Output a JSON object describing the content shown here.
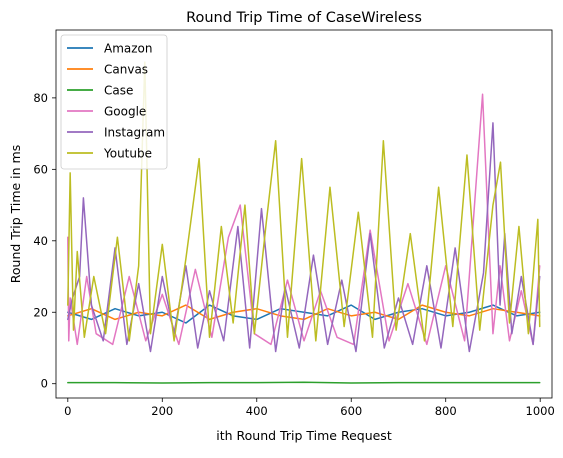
{
  "chart_data": {
    "type": "line",
    "title": "Round Trip Time of CaseWireless",
    "xlabel": "ith Round Trip Time Request",
    "ylabel": "Round Trip Time in ms",
    "xlim": [
      -25,
      1025
    ],
    "ylim": [
      -4,
      99
    ],
    "xticks": [
      0,
      200,
      400,
      600,
      800,
      1000
    ],
    "xtick_labels": [
      "0",
      "200",
      "400",
      "600",
      "800",
      "1000"
    ],
    "yticks": [
      0,
      20,
      40,
      60,
      80
    ],
    "ytick_labels": [
      "0",
      "20",
      "40",
      "60",
      "80"
    ],
    "grid": false,
    "legend_position": "top-left",
    "series": [
      {
        "name": "Amazon",
        "color": "#1f77b4",
        "x": [
          0,
          50,
          100,
          150,
          200,
          250,
          300,
          350,
          400,
          450,
          500,
          550,
          600,
          650,
          700,
          750,
          800,
          850,
          900,
          950,
          999
        ],
        "values": [
          20,
          18,
          21,
          19,
          20,
          17,
          22,
          19,
          18,
          21,
          20,
          19,
          22,
          18,
          20,
          21,
          19,
          20,
          22,
          19,
          20
        ]
      },
      {
        "name": "Canvas",
        "color": "#ff7f0e",
        "x": [
          0,
          50,
          100,
          150,
          200,
          250,
          300,
          350,
          400,
          450,
          500,
          550,
          600,
          650,
          700,
          750,
          800,
          850,
          900,
          950,
          999
        ],
        "values": [
          19,
          21,
          18,
          20,
          19,
          22,
          18,
          20,
          21,
          19,
          18,
          21,
          19,
          20,
          18,
          22,
          20,
          19,
          21,
          20,
          19
        ]
      },
      {
        "name": "Case",
        "color": "#2ca02c",
        "x": [
          0,
          100,
          200,
          300,
          400,
          500,
          600,
          700,
          800,
          900,
          999
        ],
        "values": [
          0.3,
          0.3,
          0.2,
          0.3,
          0.3,
          0.4,
          0.2,
          0.3,
          0.3,
          0.3,
          0.3
        ]
      },
      {
        "name": "Google",
        "color": "#e377c2",
        "x": [
          0,
          2,
          5,
          20,
          40,
          60,
          95,
          130,
          165,
          200,
          235,
          270,
          305,
          340,
          365,
          395,
          430,
          465,
          500,
          535,
          570,
          605,
          640,
          680,
          720,
          760,
          800,
          840,
          878,
          900,
          915,
          935,
          960,
          985,
          999
        ],
        "values": [
          41,
          12,
          24,
          11,
          30,
          14,
          11,
          30,
          12,
          25,
          11,
          32,
          13,
          41,
          50,
          14,
          11,
          29,
          12,
          26,
          13,
          11,
          43,
          12,
          28,
          11,
          33,
          12,
          81,
          14,
          33,
          12,
          26,
          11,
          33
        ]
      },
      {
        "name": "Instagram",
        "color": "#9467bd",
        "x": [
          0,
          10,
          25,
          33,
          50,
          75,
          100,
          125,
          150,
          175,
          200,
          225,
          250,
          275,
          300,
          330,
          360,
          385,
          410,
          440,
          460,
          490,
          520,
          550,
          580,
          610,
          640,
          670,
          700,
          730,
          760,
          790,
          820,
          850,
          880,
          900,
          915,
          925,
          940,
          960,
          985,
          999
        ],
        "values": [
          18,
          24,
          30,
          52,
          22,
          12,
          38,
          11,
          28,
          9,
          30,
          14,
          33,
          10,
          26,
          12,
          44,
          10,
          49,
          9,
          27,
          10,
          36,
          11,
          29,
          9,
          42,
          10,
          24,
          11,
          33,
          10,
          38,
          9,
          31,
          73,
          22,
          42,
          14,
          30,
          11,
          30
        ]
      },
      {
        "name": "Youtube",
        "color": "#bcbd22",
        "x": [
          0,
          5,
          12,
          20,
          35,
          55,
          80,
          105,
          130,
          150,
          163,
          175,
          200,
          225,
          250,
          278,
          300,
          325,
          350,
          375,
          395,
          420,
          440,
          465,
          495,
          525,
          555,
          585,
          615,
          645,
          668,
          695,
          725,
          755,
          785,
          815,
          845,
          872,
          900,
          916,
          935,
          955,
          975,
          995,
          999
        ],
        "values": [
          22,
          59,
          15,
          37,
          13,
          30,
          14,
          41,
          12,
          33,
          90,
          14,
          39,
          12,
          35,
          63,
          13,
          44,
          17,
          50,
          14,
          45,
          68,
          13,
          63,
          12,
          55,
          16,
          48,
          13,
          68,
          15,
          42,
          12,
          55,
          16,
          64,
          15,
          50,
          62,
          17,
          44,
          14,
          46,
          16
        ]
      }
    ]
  }
}
